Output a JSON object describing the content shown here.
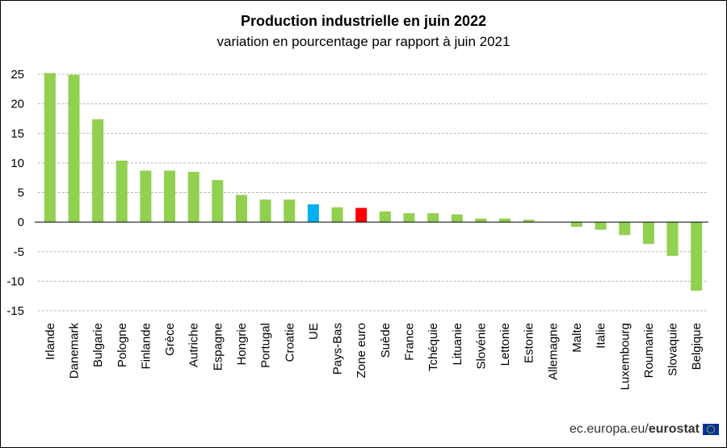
{
  "chart_data": {
    "type": "bar",
    "title": "Production industrielle  en juin 2022",
    "subtitle": "variation  en pourcentage par rapport à juin 2021",
    "xlabel": "",
    "ylabel": "",
    "ylim": [
      -15,
      25
    ],
    "yticks": [
      25,
      20,
      15,
      10,
      5,
      0,
      -5,
      -10,
      -15
    ],
    "grid": true,
    "categories": [
      "Irlande",
      "Danemark",
      "Bulgarie",
      "Pologne",
      "Finlande",
      "Grèce",
      "Autriche",
      "Espagne",
      "Hongrie",
      "Portugal",
      "Croatie",
      "UE",
      "Pays-Bas",
      "Zone euro",
      "Suède",
      "France",
      "Tchéquie",
      "Lituanie",
      "Slovénie",
      "Lettonie",
      "Estonie",
      "Allemagne",
      "Malte",
      "Italie",
      "Luxembourg",
      "Roumanie",
      "Slovaquie",
      "Belgique"
    ],
    "values": [
      25.2,
      24.9,
      17.4,
      10.4,
      8.7,
      8.7,
      8.5,
      7.1,
      4.6,
      3.8,
      3.8,
      3.0,
      2.5,
      2.4,
      1.8,
      1.5,
      1.5,
      1.3,
      0.6,
      0.6,
      0.4,
      0.0,
      -0.8,
      -1.3,
      -2.2,
      -3.7,
      -5.7,
      -11.6
    ],
    "colors": {
      "default": "#92d050",
      "UE": "#00b0f0",
      "Zone euro": "#ff0000"
    }
  },
  "source": {
    "prefix": "ec.europa.eu/",
    "brand": "eurostat"
  },
  "flag_colors": {
    "blue": "#003399",
    "stars": "#ffcc00"
  }
}
